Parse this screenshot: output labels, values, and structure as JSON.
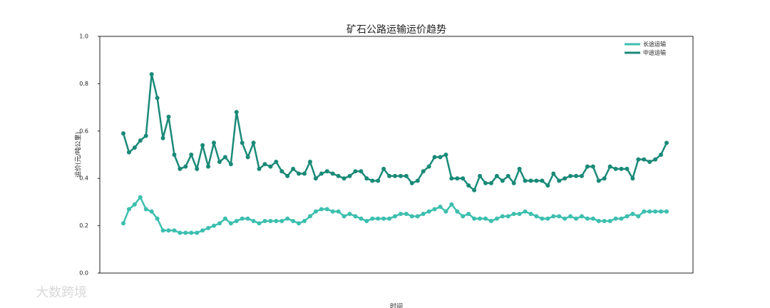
{
  "chart_data": {
    "type": "line",
    "title": "矿石公路运输运价趋势",
    "y_label": "运价(元/吨公里)",
    "x_label": "时间",
    "watermark": "大数跨境",
    "legend_position": "upper right",
    "categories": [
      null,
      null,
      null,
      null,
      null,
      null,
      null,
      null,
      null,
      null,
      null,
      null,
      null,
      null,
      null,
      null,
      null,
      null,
      null,
      null,
      null,
      null,
      null,
      null,
      null,
      null,
      null,
      null,
      null,
      null,
      null,
      null,
      null,
      null,
      null,
      null,
      null,
      null,
      null,
      null,
      null,
      null,
      null,
      null,
      null,
      null,
      null,
      null,
      null,
      null,
      null,
      null,
      null,
      null,
      null,
      null,
      null,
      null,
      null,
      null,
      null,
      null,
      null,
      null,
      null,
      null,
      null,
      null,
      null,
      null,
      null,
      null,
      null,
      null,
      null,
      null,
      null,
      null,
      null,
      null,
      null,
      null,
      null,
      null,
      null,
      null,
      null,
      null,
      null,
      null,
      null,
      null,
      null,
      null,
      null,
      null,
      null
    ],
    "series": [
      {
        "name": "长途运输",
        "color": "#3cbfae",
        "values": [
          0.21,
          0.27,
          0.29,
          0.32,
          0.27,
          0.26,
          0.23,
          0.18,
          0.18,
          0.18,
          0.17,
          0.17,
          0.17,
          0.17,
          0.18,
          0.19,
          0.2,
          0.21,
          0.23,
          0.21,
          0.22,
          0.23,
          0.23,
          0.22,
          0.21,
          0.22,
          0.22,
          0.22,
          0.22,
          0.23,
          0.22,
          0.21,
          0.22,
          0.24,
          0.26,
          0.27,
          0.27,
          0.26,
          0.26,
          0.24,
          0.25,
          0.24,
          0.23,
          0.22,
          0.23,
          0.23,
          0.23,
          0.23,
          0.24,
          0.25,
          0.25,
          0.24,
          0.24,
          0.25,
          0.26,
          0.27,
          0.28,
          0.26,
          0.29,
          0.26,
          0.24,
          0.25,
          0.23,
          0.23,
          0.23,
          0.22,
          0.23,
          0.24,
          0.24,
          0.25,
          0.25,
          0.26,
          0.25,
          0.24,
          0.23,
          0.23,
          0.24,
          0.24,
          0.23,
          0.24,
          0.23,
          0.24,
          0.23,
          0.23,
          0.22,
          0.22,
          0.22,
          0.23,
          0.23,
          0.24,
          0.25,
          0.24,
          0.26,
          0.26,
          0.26,
          0.26,
          0.26
        ]
      },
      {
        "name": "中途运输",
        "color": "#1a8a78",
        "values": [
          0.59,
          0.51,
          0.53,
          0.56,
          0.58,
          0.84,
          0.74,
          0.57,
          0.66,
          0.5,
          0.44,
          0.45,
          0.5,
          0.44,
          0.54,
          0.45,
          0.55,
          0.47,
          0.49,
          0.46,
          0.68,
          0.55,
          0.49,
          0.55,
          0.44,
          0.46,
          0.45,
          0.47,
          0.43,
          0.41,
          0.44,
          0.42,
          0.42,
          0.47,
          0.4,
          0.42,
          0.43,
          0.42,
          0.41,
          0.4,
          0.41,
          0.43,
          0.43,
          0.4,
          0.39,
          0.39,
          0.44,
          0.41,
          0.41,
          0.41,
          0.41,
          0.38,
          0.39,
          0.43,
          0.45,
          0.49,
          0.49,
          0.5,
          0.4,
          0.4,
          0.4,
          0.37,
          0.35,
          0.41,
          0.38,
          0.38,
          0.41,
          0.39,
          0.41,
          0.38,
          0.44,
          0.39,
          0.39,
          0.39,
          0.39,
          0.37,
          0.42,
          0.39,
          0.4,
          0.41,
          0.41,
          0.41,
          0.45,
          0.45,
          0.39,
          0.4,
          0.45,
          0.44,
          0.44,
          0.44,
          0.4,
          0.48,
          0.48,
          0.47,
          0.48,
          0.5,
          0.55
        ]
      }
    ],
    "ylim": [
      0,
      1
    ],
    "yticks": [
      {
        "value": 0,
        "label": "0.0"
      },
      {
        "value": 0.2,
        "label": "0.2"
      },
      {
        "value": 0.4,
        "label": "0.4"
      },
      {
        "value": 0.6,
        "label": "0.6"
      },
      {
        "value": 0.8,
        "label": "0.8"
      },
      {
        "value": 1,
        "label": "1.0"
      }
    ],
    "grid": false
  }
}
